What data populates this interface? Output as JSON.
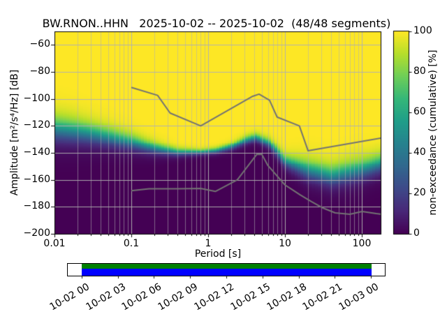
{
  "chart_data": {
    "type": "heatmap",
    "title": "BW.RNON..HHN   2025-10-02 -- 2025-10-02  (48/48 segments)",
    "xlabel": "Period [s]",
    "ylabel": "Amplitude [m²/s⁴/Hz] [dB]",
    "xlim_log10": [
      -2,
      2.2545
    ],
    "ylim": [
      -200,
      -50
    ],
    "x_major_ticks": [
      {
        "value": 0.01,
        "label": "0.01"
      },
      {
        "value": 0.1,
        "label": "0.1"
      },
      {
        "value": 1,
        "label": "1"
      },
      {
        "value": 10,
        "label": "10"
      },
      {
        "value": 100,
        "label": "100"
      }
    ],
    "y_major_ticks": [
      {
        "value": -60,
        "label": "−60"
      },
      {
        "value": -80,
        "label": "−80"
      },
      {
        "value": -100,
        "label": "−100"
      },
      {
        "value": -120,
        "label": "−120"
      },
      {
        "value": -140,
        "label": "−140"
      },
      {
        "value": -160,
        "label": "−160"
      },
      {
        "value": -180,
        "label": "−180"
      },
      {
        "value": -200,
        "label": "−200"
      }
    ],
    "colormap": {
      "name": "viridis",
      "stops": [
        [
          0.0,
          68,
          1,
          84
        ],
        [
          0.111,
          72,
          40,
          120
        ],
        [
          0.222,
          62,
          73,
          137
        ],
        [
          0.333,
          49,
          104,
          142
        ],
        [
          0.444,
          38,
          130,
          142
        ],
        [
          0.556,
          31,
          158,
          137
        ],
        [
          0.667,
          53,
          183,
          121
        ],
        [
          0.778,
          110,
          206,
          88
        ],
        [
          0.889,
          181,
          222,
          43
        ],
        [
          1.0,
          253,
          231,
          37
        ]
      ]
    },
    "colorbar": {
      "label": "non-exceedance (cumulative) [%]",
      "min": 0,
      "max": 100,
      "ticks": [
        {
          "value": 0,
          "label": "0"
        },
        {
          "value": 20,
          "label": "20"
        },
        {
          "value": 40,
          "label": "40"
        },
        {
          "value": 60,
          "label": "60"
        },
        {
          "value": 80,
          "label": "80"
        },
        {
          "value": 100,
          "label": "100"
        }
      ]
    },
    "distribution": {
      "period_bin_octaves": 0.125,
      "db_bin_db": 1,
      "median_spread_points": [
        [
          -2.0,
          -122.0,
          5.5
        ],
        [
          -1.7,
          -124.0,
          5.0
        ],
        [
          -1.4,
          -127.0,
          4.2
        ],
        [
          -1.0,
          -132.0,
          3.3
        ],
        [
          -0.7,
          -136.5,
          2.4
        ],
        [
          -0.4,
          -139.5,
          1.6
        ],
        [
          -0.1,
          -139.5,
          1.1
        ],
        [
          0.1,
          -138.5,
          1.2
        ],
        [
          0.3,
          -135.5,
          1.4
        ],
        [
          0.5,
          -130.5,
          1.7
        ],
        [
          0.62,
          -128.5,
          1.7
        ],
        [
          0.8,
          -133.0,
          2.0
        ],
        [
          1.0,
          -146.0,
          2.6
        ],
        [
          1.3,
          -152.5,
          4.2
        ],
        [
          1.6,
          -157.0,
          4.5
        ],
        [
          1.9,
          -153.5,
          4.6
        ],
        [
          2.1,
          -150.5,
          4.2
        ],
        [
          2.26,
          -147.5,
          4.0
        ]
      ]
    },
    "noise_models": {
      "color": "#737373",
      "high_noise_model": [
        [
          0.1,
          -91.5
        ],
        [
          0.22,
          -97.4
        ],
        [
          0.32,
          -110.5
        ],
        [
          0.8,
          -120.0
        ],
        [
          3.8,
          -98.1
        ],
        [
          4.6,
          -96.5
        ],
        [
          6.3,
          -101.0
        ],
        [
          7.9,
          -113.5
        ],
        [
          15.4,
          -120.0
        ],
        [
          20.0,
          -138.5
        ],
        [
          354.8,
          -126.0
        ]
      ],
      "low_noise_model": [
        [
          0.1,
          -168.0
        ],
        [
          0.17,
          -166.7
        ],
        [
          0.4,
          -166.7
        ],
        [
          0.8,
          -166.4
        ],
        [
          1.24,
          -168.6
        ],
        [
          2.4,
          -160.0
        ],
        [
          4.3,
          -141.1
        ],
        [
          5.0,
          -141.1
        ],
        [
          6.0,
          -149.4
        ],
        [
          10.0,
          -163.8
        ],
        [
          12.0,
          -166.7
        ],
        [
          15.6,
          -171.0
        ],
        [
          21.9,
          -176.0
        ],
        [
          31.6,
          -181.0
        ],
        [
          45.0,
          -184.5
        ],
        [
          70.0,
          -185.5
        ],
        [
          101.0,
          -183.5
        ],
        [
          154.0,
          -185.0
        ],
        [
          356.0,
          -187.5
        ]
      ]
    },
    "grid_color": "#b0b0b0",
    "timeline": {
      "labels": [
        "10-02 00",
        "10-02 03",
        "10-02 06",
        "10-02 09",
        "10-02 12",
        "10-02 15",
        "10-02 18",
        "10-02 21",
        "10-03 00"
      ],
      "data_color": "#008000",
      "psd_color": "#0000ff",
      "hours": 24,
      "margin_fraction": 0.05
    }
  }
}
